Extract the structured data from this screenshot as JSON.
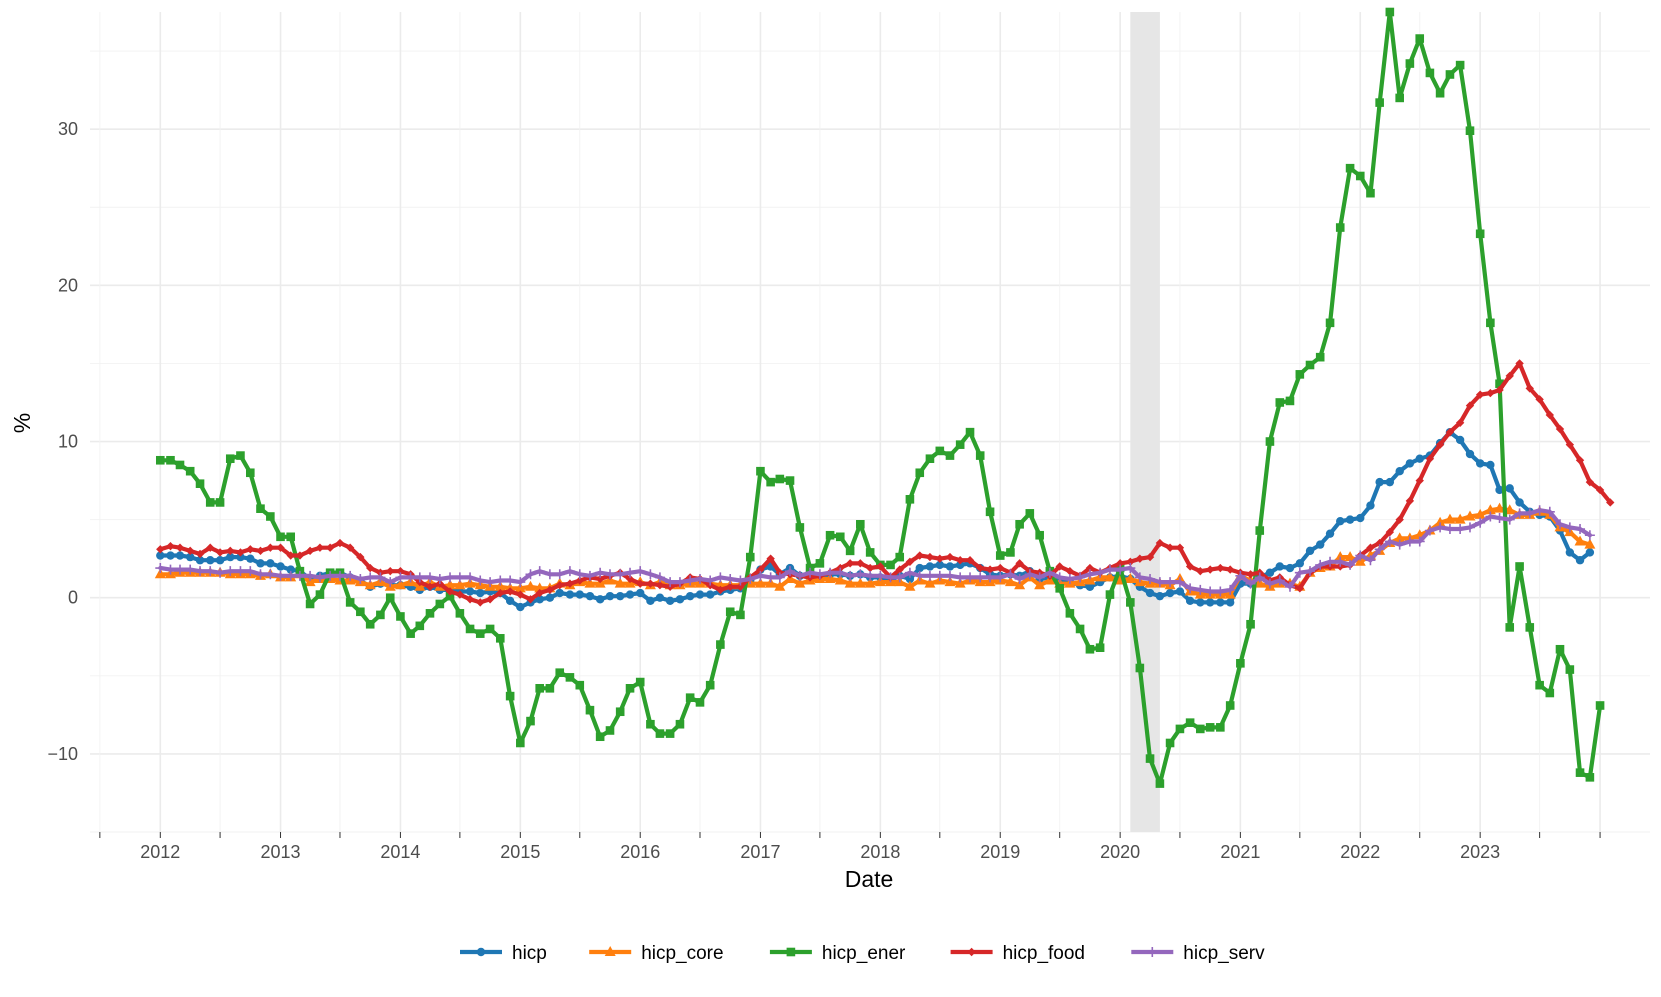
{
  "chart_data": {
    "type": "line",
    "title": "",
    "xlabel": "Date",
    "ylabel": "%",
    "x_range": [
      "2011-06-01",
      "2024-06-01"
    ],
    "ylim": [
      -15,
      37.5
    ],
    "y_ticks": [
      -10,
      0,
      10,
      20,
      30
    ],
    "y_tick_labels": [
      "−10",
      "0",
      "10",
      "20",
      "30"
    ],
    "x_tick_labels": [
      "2012",
      "2013",
      "2014",
      "2015",
      "2016",
      "2017",
      "2018",
      "2019",
      "2020",
      "2021",
      "2022",
      "2023"
    ],
    "grid": true,
    "legend_position": "bottom",
    "shaded_period": {
      "start": "2020-02-01",
      "end": "2020-05-01",
      "color": "#e6e6e6"
    },
    "x_start": "2012-01",
    "x_frequency": "monthly",
    "series": [
      {
        "name": "hicp",
        "color": "#1f77b4",
        "marker": "circle",
        "values": [
          2.7,
          2.7,
          2.7,
          2.6,
          2.4,
          2.4,
          2.4,
          2.6,
          2.6,
          2.5,
          2.2,
          2.2,
          2.0,
          1.8,
          1.7,
          1.2,
          1.4,
          1.6,
          1.6,
          1.3,
          1.1,
          0.7,
          0.9,
          0.8,
          0.8,
          0.7,
          0.5,
          0.7,
          0.5,
          0.5,
          0.4,
          0.4,
          0.3,
          0.4,
          0.3,
          -0.2,
          -0.6,
          -0.3,
          -0.1,
          0.0,
          0.3,
          0.2,
          0.2,
          0.1,
          -0.1,
          0.1,
          0.1,
          0.2,
          0.3,
          -0.2,
          0.0,
          -0.2,
          -0.1,
          0.1,
          0.2,
          0.2,
          0.4,
          0.5,
          0.6,
          1.1,
          1.8,
          2.0,
          1.5,
          1.9,
          1.4,
          1.3,
          1.3,
          1.5,
          1.5,
          1.4,
          1.5,
          1.3,
          1.3,
          1.1,
          1.4,
          1.2,
          1.9,
          2.0,
          2.1,
          2.0,
          2.1,
          2.2,
          1.9,
          1.5,
          1.4,
          1.5,
          1.4,
          1.7,
          1.2,
          1.3,
          1.0,
          1.0,
          0.8,
          0.7,
          1.0,
          1.3,
          1.4,
          1.2,
          0.7,
          0.3,
          0.1,
          0.3,
          0.4,
          -0.2,
          -0.3,
          -0.3,
          -0.3,
          -0.3,
          0.9,
          0.9,
          1.3,
          1.6,
          2.0,
          1.9,
          2.2,
          3.0,
          3.4,
          4.1,
          4.9,
          5.0,
          5.1,
          5.9,
          7.4,
          7.4,
          8.1,
          8.6,
          8.9,
          9.1,
          9.9,
          10.6,
          10.1,
          9.2,
          8.6,
          8.5,
          6.9,
          7.0,
          6.1,
          5.5,
          5.3,
          5.2,
          4.3,
          2.9,
          2.4,
          2.9
        ]
      },
      {
        "name": "hicp_core",
        "color": "#ff7f0e",
        "marker": "triangle",
        "values": [
          1.5,
          1.5,
          1.6,
          1.6,
          1.6,
          1.6,
          1.6,
          1.5,
          1.5,
          1.5,
          1.4,
          1.5,
          1.3,
          1.3,
          1.5,
          1.0,
          1.2,
          1.2,
          1.1,
          1.1,
          1.0,
          0.8,
          1.0,
          0.7,
          0.8,
          1.0,
          0.7,
          1.0,
          0.7,
          0.8,
          0.8,
          0.9,
          0.8,
          0.7,
          0.7,
          0.6,
          0.6,
          0.7,
          0.6,
          0.6,
          0.9,
          0.8,
          1.0,
          0.9,
          0.9,
          1.1,
          0.9,
          0.9,
          1.0,
          0.8,
          1.0,
          0.8,
          0.8,
          0.9,
          0.9,
          0.9,
          0.8,
          0.8,
          0.8,
          0.9,
          0.9,
          0.9,
          0.7,
          1.2,
          0.9,
          1.1,
          1.2,
          1.2,
          1.1,
          0.9,
          0.9,
          0.9,
          1.0,
          1.0,
          1.0,
          0.7,
          1.1,
          0.9,
          1.1,
          1.0,
          0.9,
          1.1,
          1.0,
          1.0,
          1.1,
          1.0,
          0.8,
          1.3,
          0.8,
          1.1,
          0.9,
          0.9,
          1.0,
          1.1,
          1.3,
          1.3,
          1.1,
          1.2,
          1.0,
          0.9,
          0.9,
          0.8,
          1.2,
          0.4,
          0.2,
          0.2,
          0.2,
          0.2,
          1.4,
          1.1,
          0.9,
          0.7,
          0.9,
          0.9,
          0.7,
          1.6,
          1.9,
          2.0,
          2.6,
          2.6,
          2.3,
          2.7,
          3.0,
          3.5,
          3.8,
          3.8,
          4.0,
          4.3,
          4.8,
          5.0,
          5.0,
          5.2,
          5.3,
          5.6,
          5.7,
          5.6,
          5.3,
          5.3,
          5.5,
          5.3,
          4.5,
          4.2,
          3.6,
          3.4
        ]
      },
      {
        "name": "hicp_ener",
        "color": "#2ca02c",
        "marker": "square",
        "values": [
          8.8,
          8.8,
          8.5,
          8.1,
          7.3,
          6.1,
          6.1,
          8.9,
          9.1,
          8.0,
          5.7,
          5.2,
          3.9,
          3.9,
          1.7,
          -0.4,
          0.2,
          1.6,
          1.6,
          -0.3,
          -0.9,
          -1.7,
          -1.1,
          0.0,
          -1.2,
          -2.3,
          -1.8,
          -1.0,
          -0.4,
          0.1,
          -1.0,
          -2.0,
          -2.3,
          -2.0,
          -2.6,
          -6.3,
          -9.3,
          -7.9,
          -5.8,
          -5.8,
          -4.8,
          -5.1,
          -5.6,
          -7.2,
          -8.9,
          -8.5,
          -7.3,
          -5.8,
          -5.4,
          -8.1,
          -8.7,
          -8.7,
          -8.1,
          -6.4,
          -6.7,
          -5.6,
          -3.0,
          -0.9,
          -1.1,
          2.6,
          8.1,
          7.4,
          7.6,
          7.5,
          4.5,
          1.9,
          2.2,
          4.0,
          3.9,
          3.0,
          4.7,
          2.9,
          2.1,
          2.1,
          2.6,
          6.3,
          8.0,
          8.9,
          9.4,
          9.1,
          9.8,
          10.6,
          9.1,
          5.5,
          2.7,
          2.9,
          4.7,
          5.4,
          4.0,
          1.7,
          0.6,
          -1.0,
          -2.0,
          -3.3,
          -3.2,
          0.2,
          1.9,
          -0.3,
          -4.5,
          -10.3,
          -11.9,
          -9.3,
          -8.4,
          -8.0,
          -8.4,
          -8.3,
          -8.3,
          -6.9,
          -4.2,
          -1.7,
          4.3,
          10.0,
          12.5,
          12.6,
          14.3,
          14.9,
          15.4,
          17.6,
          23.7,
          27.5,
          27.0,
          25.9,
          31.7,
          37.5,
          32.0,
          34.2,
          35.8,
          33.6,
          32.3,
          33.5,
          34.1,
          29.9,
          23.3,
          17.6,
          13.7,
          -1.9,
          2.0,
          -1.9,
          -5.6,
          -6.1,
          -3.3,
          -4.6,
          -11.2,
          -11.5,
          -6.9
        ]
      },
      {
        "name": "hicp_food",
        "color": "#d62728",
        "marker": "diamond",
        "values": [
          3.1,
          3.3,
          3.2,
          3.0,
          2.8,
          3.2,
          2.9,
          3.0,
          2.9,
          3.1,
          3.0,
          3.2,
          3.2,
          2.7,
          2.7,
          3.0,
          3.2,
          3.2,
          3.5,
          3.2,
          2.6,
          1.9,
          1.6,
          1.7,
          1.7,
          1.5,
          1.0,
          0.7,
          0.9,
          0.4,
          0.2,
          -0.1,
          -0.3,
          -0.1,
          0.3,
          0.4,
          0.2,
          -0.1,
          0.3,
          0.5,
          0.8,
          0.9,
          1.1,
          1.3,
          1.2,
          1.4,
          1.6,
          1.2,
          0.9,
          0.9,
          0.8,
          0.7,
          0.9,
          1.3,
          1.2,
          0.8,
          0.5,
          0.7,
          0.7,
          1.3,
          1.8,
          2.5,
          1.6,
          1.5,
          1.4,
          1.3,
          1.4,
          1.6,
          1.9,
          2.2,
          2.2,
          1.9,
          2.0,
          1.3,
          1.8,
          2.3,
          2.7,
          2.6,
          2.5,
          2.6,
          2.4,
          2.4,
          1.9,
          1.8,
          1.9,
          1.6,
          2.2,
          1.7,
          1.6,
          1.4,
          2.0,
          1.7,
          1.4,
          1.9,
          1.6,
          1.9,
          2.2,
          2.3,
          2.5,
          2.6,
          3.5,
          3.2,
          3.2,
          2.0,
          1.7,
          1.8,
          1.9,
          1.8,
          1.6,
          1.5,
          1.6,
          1.1,
          1.3,
          0.8,
          0.6,
          1.6,
          2.0,
          2.0,
          2.0,
          2.1,
          2.7,
          3.2,
          3.5,
          4.2,
          5.0,
          6.2,
          7.5,
          8.9,
          9.8,
          10.6,
          11.2,
          12.3,
          13.0,
          13.1,
          13.3,
          14.2,
          15.0,
          13.4,
          12.7,
          11.7,
          10.8,
          9.8,
          8.8,
          7.4,
          6.9,
          6.1
        ]
      },
      {
        "name": "hicp_serv",
        "color": "#9467bd",
        "marker": "plus",
        "values": [
          1.9,
          1.8,
          1.8,
          1.8,
          1.7,
          1.7,
          1.6,
          1.7,
          1.7,
          1.7,
          1.5,
          1.5,
          1.4,
          1.4,
          1.4,
          1.4,
          1.3,
          1.4,
          1.4,
          1.4,
          1.2,
          1.3,
          1.3,
          1.0,
          1.3,
          1.3,
          1.3,
          1.3,
          1.2,
          1.3,
          1.3,
          1.3,
          1.1,
          1.0,
          1.1,
          1.1,
          1.0,
          1.5,
          1.7,
          1.5,
          1.5,
          1.7,
          1.5,
          1.4,
          1.6,
          1.5,
          1.5,
          1.6,
          1.7,
          1.5,
          1.3,
          1.0,
          1.0,
          1.1,
          1.2,
          1.1,
          1.3,
          1.2,
          1.1,
          1.2,
          1.4,
          1.3,
          1.3,
          1.7,
          1.4,
          1.6,
          1.5,
          1.6,
          1.6,
          1.4,
          1.5,
          1.4,
          1.4,
          1.3,
          1.3,
          1.6,
          1.4,
          1.4,
          1.4,
          1.4,
          1.3,
          1.3,
          1.3,
          1.3,
          1.3,
          1.5,
          1.2,
          1.5,
          1.3,
          1.6,
          1.3,
          1.2,
          1.3,
          1.5,
          1.6,
          1.8,
          1.8,
          1.9,
          1.3,
          1.2,
          1.0,
          1.0,
          1.0,
          0.6,
          0.5,
          0.4,
          0.4,
          0.5,
          1.4,
          0.9,
          1.3,
          0.9,
          1.1,
          0.7,
          1.6,
          1.7,
          2.1,
          2.3,
          2.3,
          2.1,
          2.7,
          2.4,
          3.1,
          3.6,
          3.4,
          3.6,
          3.6,
          4.3,
          4.5,
          4.4,
          4.4,
          4.5,
          4.8,
          5.2,
          5.1,
          5.0,
          5.4,
          5.4,
          5.6,
          5.5,
          4.7,
          4.5,
          4.4,
          4.0
        ]
      }
    ]
  }
}
